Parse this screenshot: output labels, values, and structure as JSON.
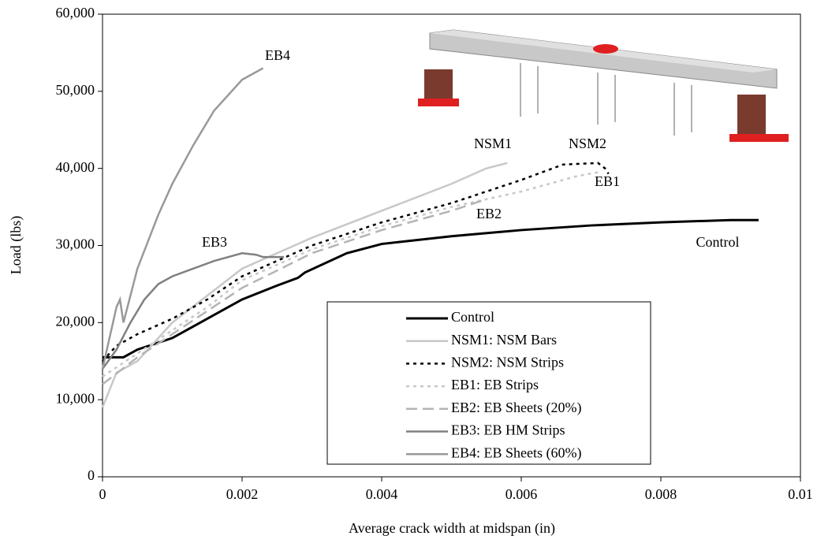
{
  "chart_data": {
    "type": "line",
    "xlabel": "Average crack width at midspan (in)",
    "ylabel": "Load (lbs)",
    "xlim": [
      0,
      0.01
    ],
    "xticks": [
      0,
      0.002,
      0.004,
      0.006,
      0.008,
      0.01
    ],
    "ylim": [
      0,
      60000
    ],
    "yticks": [
      0,
      {
        "value": 10000,
        "label": "10,000"
      },
      {
        "value": 20000,
        "label": "20,000"
      },
      {
        "value": 30000,
        "label": "30,000"
      },
      {
        "value": 40000,
        "label": "40,000"
      },
      {
        "value": 50000,
        "label": "50,000"
      },
      {
        "value": 60000,
        "label": "60,000"
      }
    ],
    "series": [
      {
        "name": "Control",
        "color": "#000000",
        "dash": "solid",
        "x": [
          0,
          0.0003,
          0.0005,
          0.001,
          0.0015,
          0.002,
          0.0025,
          0.0028,
          0.0029,
          0.0035,
          0.004,
          0.005,
          0.006,
          0.007,
          0.008,
          0.009,
          0.0094
        ],
        "values": [
          15500,
          15500,
          16500,
          18000,
          20500,
          23000,
          24800,
          25800,
          26500,
          29000,
          30200,
          31200,
          32000,
          32600,
          33000,
          33300,
          33300
        ]
      },
      {
        "name": "NSM1: NSM Bars",
        "color": "#c8c8c8",
        "dash": "solid",
        "x": [
          0,
          0.0002,
          0.0005,
          0.001,
          0.0015,
          0.002,
          0.003,
          0.004,
          0.005,
          0.0055,
          0.0058
        ],
        "values": [
          9000,
          13500,
          15000,
          20000,
          23500,
          27000,
          31000,
          34500,
          38000,
          40000,
          40700
        ]
      },
      {
        "name": "NSM2: NSM Strips",
        "color": "#000000",
        "dash": "dotted",
        "x": [
          0,
          0.0002,
          0.0005,
          0.001,
          0.0015,
          0.002,
          0.003,
          0.004,
          0.005,
          0.006,
          0.0066,
          0.0071,
          0.0072,
          0.00725
        ],
        "values": [
          15000,
          17000,
          18500,
          20500,
          23000,
          26000,
          30000,
          33000,
          35500,
          38500,
          40500,
          40700,
          40000,
          39300
        ]
      },
      {
        "name": "EB1: EB Strips",
        "color": "#c8c8c8",
        "dash": "dotted",
        "x": [
          0,
          0.0005,
          0.001,
          0.0015,
          0.002,
          0.003,
          0.004,
          0.005,
          0.006,
          0.0068,
          0.0071
        ],
        "values": [
          13000,
          16000,
          19000,
          22000,
          25500,
          29500,
          32500,
          35000,
          37000,
          39000,
          39500
        ]
      },
      {
        "name": "EB2: EB Sheets (20%)",
        "color": "#b4b4b4",
        "dash": "dashed",
        "x": [
          0,
          0.0005,
          0.001,
          0.0015,
          0.002,
          0.003,
          0.004,
          0.005,
          0.0055
        ],
        "values": [
          12000,
          15500,
          18500,
          21500,
          24500,
          29000,
          32000,
          34500,
          36000
        ]
      },
      {
        "name": "EB3: EB HM Strips",
        "color": "#808080",
        "dash": "solid",
        "x": [
          0,
          0.0002,
          0.0004,
          0.0006,
          0.0008,
          0.001,
          0.0013,
          0.0016,
          0.002,
          0.0022,
          0.0023,
          0.0026
        ],
        "values": [
          14000,
          16500,
          20000,
          23000,
          25000,
          26000,
          27000,
          28000,
          29000,
          28800,
          28500,
          28500
        ]
      },
      {
        "name": "EB4: EB Sheets (60%)",
        "color": "#999999",
        "dash": "solid",
        "x": [
          0,
          0.0001,
          0.0002,
          0.00025,
          0.0003,
          0.0005,
          0.0008,
          0.001,
          0.0013,
          0.0016,
          0.002,
          0.0023
        ],
        "values": [
          14000,
          18000,
          22000,
          23000,
          20000,
          27000,
          34000,
          38000,
          43000,
          47500,
          51500,
          53000
        ]
      }
    ],
    "annotations": [
      "EB4",
      "NSM1",
      "NSM2",
      "EB1",
      "EB2",
      "EB3",
      "Control"
    ]
  }
}
